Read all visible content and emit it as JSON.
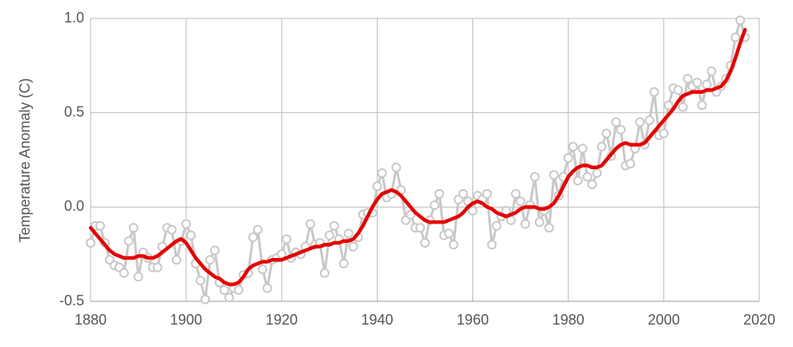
{
  "chart_data": {
    "type": "line",
    "y_label": "Temperature Anomaly (C)",
    "x": [
      1880,
      1881,
      1882,
      1883,
      1884,
      1885,
      1886,
      1887,
      1888,
      1889,
      1890,
      1891,
      1892,
      1893,
      1894,
      1895,
      1896,
      1897,
      1898,
      1899,
      1900,
      1901,
      1902,
      1903,
      1904,
      1905,
      1906,
      1907,
      1908,
      1909,
      1910,
      1911,
      1912,
      1913,
      1914,
      1915,
      1916,
      1917,
      1918,
      1919,
      1920,
      1921,
      1922,
      1923,
      1924,
      1925,
      1926,
      1927,
      1928,
      1929,
      1930,
      1931,
      1932,
      1933,
      1934,
      1935,
      1936,
      1937,
      1938,
      1939,
      1940,
      1941,
      1942,
      1943,
      1944,
      1945,
      1946,
      1947,
      1948,
      1949,
      1950,
      1951,
      1952,
      1953,
      1954,
      1955,
      1956,
      1957,
      1958,
      1959,
      1960,
      1961,
      1962,
      1963,
      1964,
      1965,
      1966,
      1967,
      1968,
      1969,
      1970,
      1971,
      1972,
      1973,
      1974,
      1975,
      1976,
      1977,
      1978,
      1979,
      1980,
      1981,
      1982,
      1983,
      1984,
      1985,
      1986,
      1987,
      1988,
      1989,
      1990,
      1991,
      1992,
      1993,
      1994,
      1995,
      1996,
      1997,
      1998,
      1999,
      2000,
      2001,
      2002,
      2003,
      2004,
      2005,
      2006,
      2007,
      2008,
      2009,
      2010,
      2011,
      2012,
      2013,
      2014,
      2015,
      2016,
      2017
    ],
    "series": [
      {
        "color": "#c8c8c8",
        "markers": true,
        "values": [
          -0.19,
          -0.1,
          -0.1,
          -0.19,
          -0.28,
          -0.31,
          -0.32,
          -0.35,
          -0.18,
          -0.11,
          -0.37,
          -0.24,
          -0.27,
          -0.32,
          -0.32,
          -0.21,
          -0.11,
          -0.12,
          -0.28,
          -0.18,
          -0.09,
          -0.15,
          -0.3,
          -0.39,
          -0.49,
          -0.28,
          -0.23,
          -0.4,
          -0.44,
          -0.48,
          -0.43,
          -0.44,
          -0.36,
          -0.35,
          -0.16,
          -0.12,
          -0.33,
          -0.43,
          -0.28,
          -0.27,
          -0.25,
          -0.17,
          -0.27,
          -0.24,
          -0.25,
          -0.21,
          -0.09,
          -0.2,
          -0.19,
          -0.35,
          -0.15,
          -0.1,
          -0.17,
          -0.3,
          -0.14,
          -0.21,
          -0.16,
          -0.04,
          -0.03,
          -0.03,
          0.11,
          0.18,
          0.05,
          0.07,
          0.21,
          0.09,
          -0.07,
          -0.04,
          -0.11,
          -0.11,
          -0.19,
          -0.07,
          0.01,
          0.07,
          -0.15,
          -0.14,
          -0.2,
          0.04,
          0.07,
          0.03,
          -0.02,
          0.06,
          0.04,
          0.07,
          -0.2,
          -0.1,
          -0.05,
          -0.02,
          -0.07,
          0.07,
          0.03,
          -0.09,
          0.01,
          0.16,
          -0.08,
          -0.02,
          -0.11,
          0.17,
          0.06,
          0.16,
          0.26,
          0.32,
          0.14,
          0.31,
          0.16,
          0.12,
          0.18,
          0.32,
          0.39,
          0.27,
          0.45,
          0.41,
          0.22,
          0.23,
          0.31,
          0.45,
          0.33,
          0.46,
          0.61,
          0.38,
          0.39,
          0.54,
          0.63,
          0.62,
          0.53,
          0.68,
          0.64,
          0.66,
          0.54,
          0.65,
          0.72,
          0.61,
          0.64,
          0.68,
          0.75,
          0.9,
          0.99,
          0.9
        ]
      },
      {
        "color": "#e60000",
        "markers": false,
        "values": [
          -0.11,
          -0.14,
          -0.17,
          -0.2,
          -0.23,
          -0.25,
          -0.26,
          -0.27,
          -0.27,
          -0.27,
          -0.26,
          -0.26,
          -0.27,
          -0.27,
          -0.26,
          -0.24,
          -0.22,
          -0.2,
          -0.18,
          -0.17,
          -0.19,
          -0.23,
          -0.27,
          -0.3,
          -0.33,
          -0.35,
          -0.37,
          -0.38,
          -0.4,
          -0.41,
          -0.41,
          -0.4,
          -0.37,
          -0.33,
          -0.31,
          -0.3,
          -0.29,
          -0.29,
          -0.28,
          -0.28,
          -0.28,
          -0.27,
          -0.26,
          -0.25,
          -0.24,
          -0.23,
          -0.22,
          -0.21,
          -0.21,
          -0.2,
          -0.2,
          -0.19,
          -0.19,
          -0.18,
          -0.18,
          -0.17,
          -0.14,
          -0.1,
          -0.05,
          0.0,
          0.04,
          0.07,
          0.08,
          0.09,
          0.08,
          0.06,
          0.03,
          0.0,
          -0.03,
          -0.05,
          -0.07,
          -0.08,
          -0.08,
          -0.08,
          -0.08,
          -0.07,
          -0.06,
          -0.05,
          -0.03,
          0.0,
          0.02,
          0.03,
          0.02,
          0.0,
          -0.01,
          -0.03,
          -0.04,
          -0.05,
          -0.04,
          -0.03,
          -0.01,
          0.0,
          0.0,
          0.0,
          -0.01,
          -0.01,
          0.0,
          0.02,
          0.06,
          0.11,
          0.16,
          0.19,
          0.21,
          0.22,
          0.22,
          0.21,
          0.21,
          0.22,
          0.25,
          0.28,
          0.31,
          0.33,
          0.34,
          0.33,
          0.33,
          0.33,
          0.34,
          0.37,
          0.4,
          0.43,
          0.46,
          0.49,
          0.52,
          0.56,
          0.59,
          0.6,
          0.61,
          0.61,
          0.61,
          0.62,
          0.62,
          0.63,
          0.64,
          0.67,
          0.72,
          0.79,
          0.87,
          0.94
        ]
      }
    ],
    "xlim": [
      1880,
      2020
    ],
    "xticks": [
      1880,
      1900,
      1920,
      1940,
      1960,
      1980,
      2000,
      2020
    ],
    "ylim": [
      -0.5,
      1.0
    ],
    "yticks": [
      {
        "value": 1.0,
        "label": "1.0"
      },
      0.5,
      {
        "value": 0.0,
        "label": "0.0"
      },
      -0.5
    ],
    "grid": true
  }
}
